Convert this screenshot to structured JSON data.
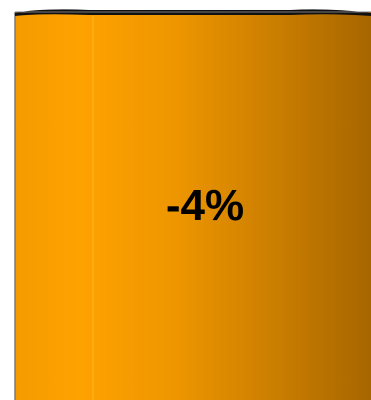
{
  "chart_data": {
    "type": "bar",
    "style": "3d-cylinder",
    "values": [
      -4
    ],
    "data_labels": [
      "-4%"
    ],
    "colors": {
      "bar_light": "#ffa200",
      "bar_dark": "#a86600",
      "bar_top_edge": "#111111",
      "outline": "#7a7a7a"
    }
  }
}
